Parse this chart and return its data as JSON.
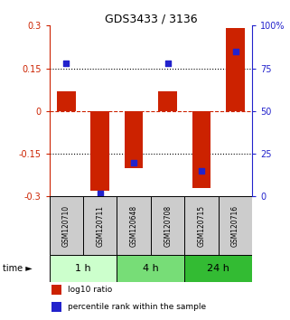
{
  "title": "GDS3433 / 3136",
  "samples": [
    "GSM120710",
    "GSM120711",
    "GSM120648",
    "GSM120708",
    "GSM120715",
    "GSM120716"
  ],
  "log10_ratio": [
    0.07,
    -0.28,
    -0.2,
    0.07,
    -0.27,
    0.29
  ],
  "percentile_rank": [
    78,
    2,
    20,
    78,
    15,
    85
  ],
  "ylim_left": [
    -0.3,
    0.3
  ],
  "ylim_right": [
    0,
    100
  ],
  "yticks_left": [
    -0.3,
    -0.15,
    0.0,
    0.15,
    0.3
  ],
  "yticks_right": [
    0,
    25,
    50,
    75,
    100
  ],
  "ytick_labels_left": [
    "-0.3",
    "-0.15",
    "0",
    "0.15",
    "0.3"
  ],
  "ytick_labels_right": [
    "0",
    "25",
    "50",
    "75",
    "100%"
  ],
  "bar_color": "#cc2200",
  "dot_color": "#2222cc",
  "dotted_line_color": "#000000",
  "dashed_line_color": "#cc2200",
  "time_groups": [
    {
      "label": "1 h",
      "color": "#ccffcc",
      "start": 0,
      "end": 2
    },
    {
      "label": "4 h",
      "color": "#77dd77",
      "start": 2,
      "end": 4
    },
    {
      "label": "24 h",
      "color": "#33bb33",
      "start": 4,
      "end": 6
    }
  ],
  "legend_items": [
    {
      "label": "log10 ratio",
      "color": "#cc2200"
    },
    {
      "label": "percentile rank within the sample",
      "color": "#2222cc"
    }
  ],
  "bar_width": 0.55,
  "background_color": "#ffffff",
  "sample_box_color": "#cccccc"
}
